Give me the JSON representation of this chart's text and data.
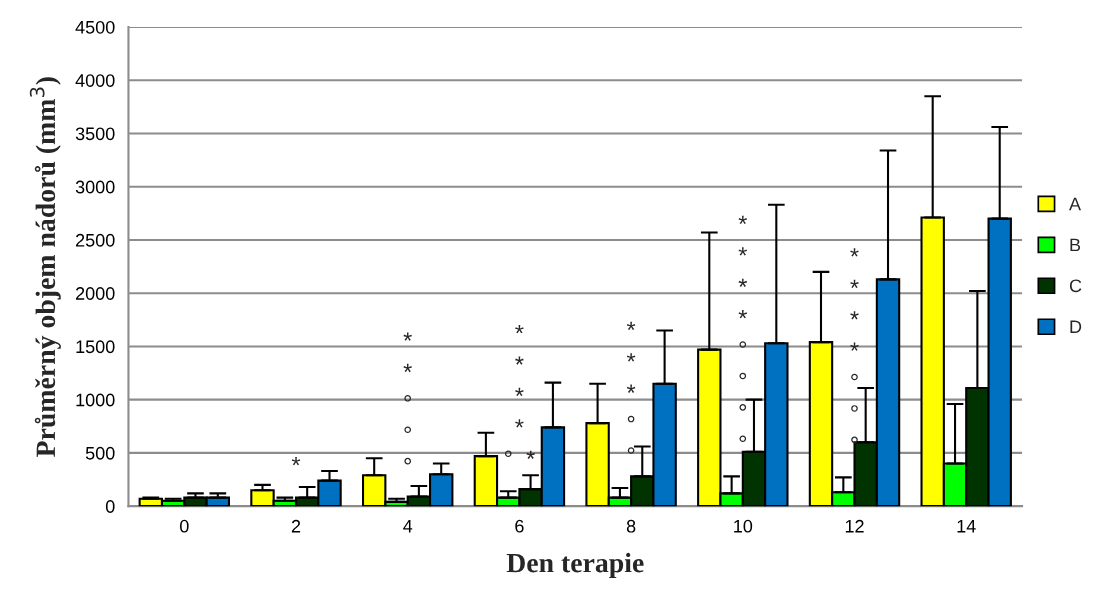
{
  "chart_data": {
    "type": "bar",
    "xlabel": "Den terapie",
    "ylabel": "Průměrný objem nádorů (mm$^{3}$)",
    "categories": [
      "0",
      "2",
      "4",
      "6",
      "8",
      "10",
      "12",
      "14"
    ],
    "series": [
      {
        "name": "A",
        "color": "#ffff00",
        "values": [
          70,
          150,
          290,
          470,
          780,
          1470,
          1540,
          2710
        ],
        "errors": [
          [
            70,
            80
          ],
          [
            150,
            200
          ],
          [
            290,
            450
          ],
          [
            470,
            690
          ],
          [
            780,
            1150
          ],
          [
            1470,
            2570
          ],
          [
            1540,
            2200
          ],
          [
            2710,
            3850
          ]
        ]
      },
      {
        "name": "B",
        "color": "#00ff00",
        "values": [
          50,
          50,
          40,
          80,
          80,
          120,
          130,
          400
        ],
        "errors": [
          [
            50,
            70
          ],
          [
            50,
            80
          ],
          [
            40,
            70
          ],
          [
            80,
            140
          ],
          [
            80,
            170
          ],
          [
            120,
            280
          ],
          [
            130,
            270
          ],
          [
            400,
            960
          ]
        ]
      },
      {
        "name": "C",
        "color": "#003300",
        "values": [
          80,
          80,
          90,
          160,
          280,
          510,
          600,
          1110
        ],
        "errors": [
          [
            80,
            120
          ],
          [
            80,
            180
          ],
          [
            90,
            190
          ],
          [
            160,
            290
          ],
          [
            280,
            560
          ],
          [
            510,
            1000
          ],
          [
            600,
            1110
          ],
          [
            1110,
            2020
          ]
        ]
      },
      {
        "name": "D",
        "color": "#0070c0",
        "values": [
          80,
          240,
          300,
          740,
          1150,
          1530,
          2130,
          2700
        ],
        "errors": [
          [
            80,
            120
          ],
          [
            240,
            330
          ],
          [
            300,
            400
          ],
          [
            740,
            1160
          ],
          [
            1150,
            1650
          ],
          [
            1530,
            2830
          ],
          [
            2130,
            3340
          ],
          [
            2700,
            3560
          ]
        ]
      }
    ],
    "annotations": [
      "*",
      "*\n*\n°\n°\n°",
      "*\n*\n*\n*\n°  *",
      "*\n*\n*\n°\n°",
      "*\n*\n*\n*\n°\n°\n°\n°",
      "*\n*\n*\n*\n°\n°\n°"
    ],
    "ylim": [
      0,
      4500
    ],
    "yticks": [
      0,
      500,
      1000,
      1500,
      2000,
      2500,
      3000,
      3500,
      4000,
      4500
    ],
    "grid": "y",
    "legend": "right"
  }
}
